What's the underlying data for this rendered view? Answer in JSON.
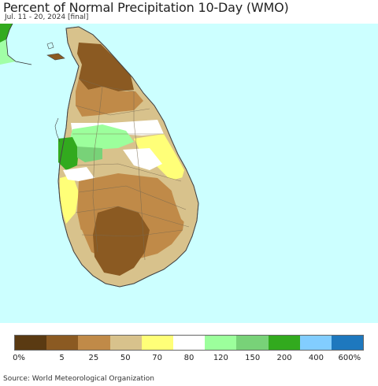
{
  "header": {
    "title": "Percent of Normal Precipitation 10-Day (WMO)",
    "subtitle": "Jul. 11 - 20, 2024 [final]"
  },
  "map": {
    "ocean_color": "#ccffff",
    "land_default": "#d4c08c"
  },
  "legend": {
    "colors": [
      "#5a3a12",
      "#8b5a22",
      "#c08a48",
      "#d8c28c",
      "#ffff78",
      "#ffffff",
      "#9cff9c",
      "#78d278",
      "#32aa1e",
      "#82cdff",
      "#1e78be"
    ],
    "ticks": [
      "0%",
      "5",
      "25",
      "50",
      "70",
      "80",
      "120",
      "150",
      "200",
      "400",
      "600%"
    ]
  },
  "footer": {
    "source": "Source: World Meteorological Organization"
  }
}
